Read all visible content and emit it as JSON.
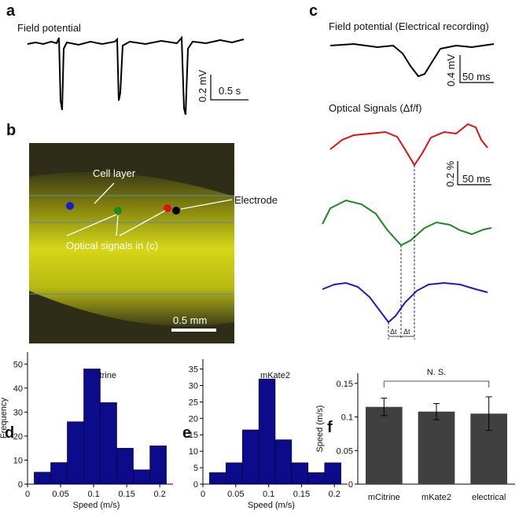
{
  "panel_labels": [
    "a",
    "b",
    "c",
    "d",
    "e",
    "f"
  ],
  "panel_a": {
    "title": "Field potential",
    "scale_y": "0.2 mV",
    "scale_x": "0.5 s"
  },
  "panel_b": {
    "cell_layer": "Cell layer",
    "electrode": "Electrode",
    "optical": "Optical signals in (c)",
    "scale": "0.5 mm"
  },
  "panel_c": {
    "title": "Field potential (Electrical recording)",
    "scale_y": "0.4 mV",
    "scale_x": "50 ms",
    "optical_title": "Optical Signals (Δf/f)",
    "optical_scale_y": "0.2 %",
    "optical_scale_x": "50 ms",
    "delta": [
      "Δt",
      "Δt"
    ]
  },
  "chart_data": [
    {
      "type": "histogram",
      "title": "mCitrine",
      "x_label": "Speed (m/s)",
      "y_label": "Frequency",
      "color": "#0b0b8c",
      "bins": [
        0.01,
        0.035,
        0.06,
        0.085,
        0.11,
        0.135,
        0.16,
        0.185,
        0.21
      ],
      "counts": [
        5,
        9,
        26,
        48,
        34,
        15,
        6,
        16
      ],
      "xlim": [
        0,
        0.22
      ],
      "xticks": [
        0,
        0.05,
        0.1,
        0.15,
        0.2
      ],
      "ylim": [
        0,
        55
      ],
      "yticks": [
        0,
        10,
        20,
        30,
        40,
        50
      ]
    },
    {
      "type": "histogram",
      "title": "mKate2",
      "x_label": "Speed (m/s)",
      "color": "#0b0b8c",
      "bins": [
        0.01,
        0.035,
        0.06,
        0.085,
        0.11,
        0.135,
        0.16,
        0.185,
        0.21
      ],
      "counts": [
        3.5,
        6.5,
        16.5,
        32,
        13.5,
        6.5,
        3.5,
        6.5
      ],
      "xlim": [
        0,
        0.22
      ],
      "xticks": [
        0,
        0.05,
        0.1,
        0.15,
        0.2
      ],
      "ylim": [
        0,
        38
      ],
      "yticks": [
        0,
        5,
        10,
        15,
        20,
        25,
        30,
        35
      ]
    },
    {
      "type": "bar",
      "y_label": "Speed (m/s)",
      "color": "#404040",
      "annotation": "N. S.",
      "categories": [
        "mCitrine",
        "mKate2",
        "electrical"
      ],
      "values": [
        0.115,
        0.108,
        0.105
      ],
      "errors": [
        0.013,
        0.012,
        0.025
      ],
      "ylim": [
        0,
        0.165
      ],
      "yticks": [
        0,
        0.05,
        0.1,
        0.15
      ]
    }
  ]
}
